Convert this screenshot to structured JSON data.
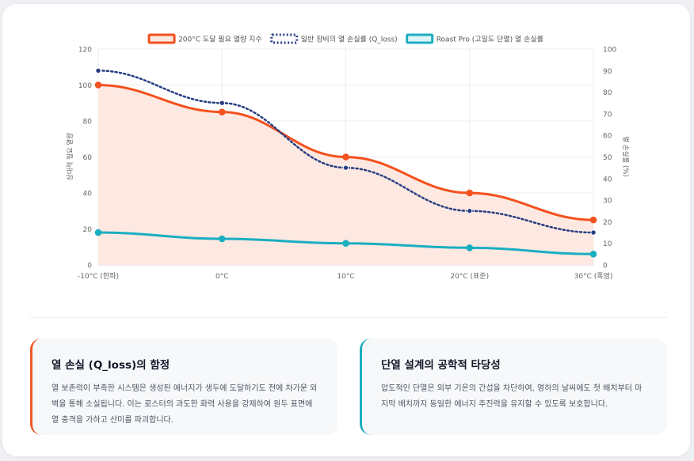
{
  "chart_data": {
    "type": "line",
    "categories": [
      "-10°C (한파)",
      "0°C",
      "10°C",
      "20°C (표준)",
      "30°C (폭염)"
    ],
    "series": [
      {
        "name": "200°C 도달 필요 열량 지수",
        "axis": "left",
        "values": [
          100,
          85,
          60,
          40,
          25
        ],
        "color": "#f4511e",
        "fill": "#fde9e1",
        "style": "solid"
      },
      {
        "name": "일반 장비의 열 손실률 (Q_loss)",
        "axis": "right",
        "values": [
          90,
          75,
          45,
          25,
          15
        ],
        "color": "#283d82",
        "style": "dotted"
      },
      {
        "name": "Roast Pro (고밀도 단열) 열 손실률",
        "axis": "left",
        "values": [
          18,
          14.5,
          12,
          9.5,
          6
        ],
        "color": "#1aaec1",
        "style": "solid"
      }
    ],
    "y_left": {
      "label": "상대적 필요 열량",
      "min": 0,
      "max": 120,
      "ticks": [
        0,
        20,
        40,
        60,
        80,
        100,
        120
      ]
    },
    "y_right": {
      "label": "열 손실률 (%)",
      "min": 0,
      "max": 100,
      "ticks": [
        0,
        10,
        20,
        30,
        40,
        50,
        60,
        70,
        80,
        90,
        100
      ]
    },
    "grid": true,
    "legend": "top"
  },
  "cards": [
    {
      "title": "열 손실 (Q_loss)의 함정",
      "body": "열 보존력이 부족한 시스템은 생성된 에너지가 생두에 도달하기도 전에 차가운 외벽을 통해 소실됩니다. 이는 로스터의 과도한 화력 사용을 강제하여 원두 표면에 열 충격을 가하고 산미를 파괴합니다.",
      "accent": "#f05a28"
    },
    {
      "title": "단열 설계의 공학적 타당성",
      "body": "압도적인 단열은 외부 기온의 간섭을 차단하여, 영하의 날씨에도 첫 배치부터 마지막 배치까지 동일한 에너지 추진력을 유지할 수 있도록 보호합니다.",
      "accent": "#1aaec1"
    }
  ]
}
